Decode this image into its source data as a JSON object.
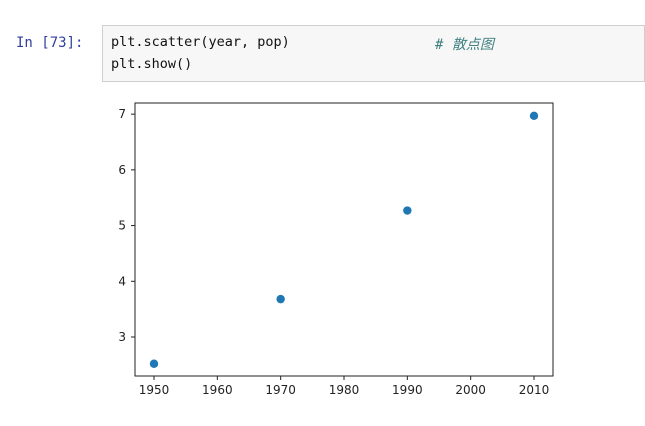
{
  "cell": {
    "prompt": "In  [73]:",
    "code_lines": [
      "plt.scatter(year, pop)",
      "plt.show()"
    ],
    "comment": "# 散点图"
  },
  "chart_data": {
    "type": "scatter",
    "x": [
      1950,
      1970,
      1990,
      2010
    ],
    "y": [
      2.52,
      3.68,
      5.27,
      6.97
    ],
    "xlim": [
      1947,
      2013
    ],
    "ylim": [
      2.3,
      7.2
    ],
    "xticks": [
      1950,
      1960,
      1970,
      1980,
      1990,
      2000,
      2010
    ],
    "yticks": [
      3,
      4,
      5,
      6,
      7
    ],
    "title": "",
    "xlabel": "",
    "ylabel": "",
    "grid": false,
    "marker_color": "#1f77b4"
  }
}
